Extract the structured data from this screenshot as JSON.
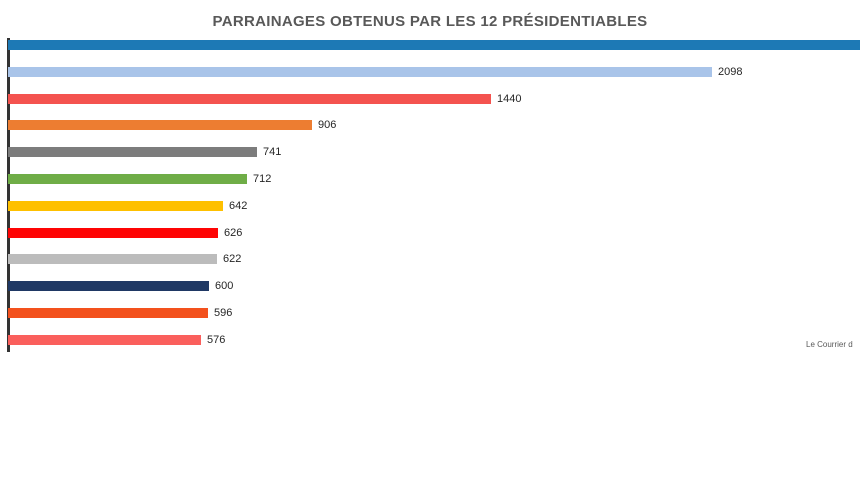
{
  "title": "PARRAINAGES OBTENUS PAR LES 12 PRÉSIDENTIABLES",
  "attribution": "Le Courrier d",
  "chart_data": {
    "type": "bar",
    "orientation": "horizontal",
    "title": "PARRAINAGES OBTENUS PAR LES 12 PRÉSIDENTIABLES",
    "xlabel": "",
    "ylabel": "",
    "grid": false,
    "legend": false,
    "value_axis_ticks_visible": false,
    "category_labels_visible": false,
    "bars": [
      {
        "value": null,
        "label": "",
        "color": "#1d79b5",
        "cutoff": true
      },
      {
        "value": 2098,
        "label": "2098",
        "color": "#a9c4e9",
        "cutoff": false
      },
      {
        "value": 1440,
        "label": "1440",
        "color": "#f4534f",
        "cutoff": false
      },
      {
        "value": 906,
        "label": "906",
        "color": "#ed7d31",
        "cutoff": false
      },
      {
        "value": 741,
        "label": "741",
        "color": "#7c7c7c",
        "cutoff": false
      },
      {
        "value": 712,
        "label": "712",
        "color": "#6fad47",
        "cutoff": false
      },
      {
        "value": 642,
        "label": "642",
        "color": "#fec000",
        "cutoff": false
      },
      {
        "value": 626,
        "label": "626",
        "color": "#fe0404",
        "cutoff": false
      },
      {
        "value": 622,
        "label": "622",
        "color": "#bcbcbc",
        "cutoff": false
      },
      {
        "value": 600,
        "label": "600",
        "color": "#1f3864",
        "cutoff": false
      },
      {
        "value": 596,
        "label": "596",
        "color": "#f3511d",
        "cutoff": false
      },
      {
        "value": 576,
        "label": "576",
        "color": "#fa5f5c",
        "cutoff": false
      }
    ]
  }
}
